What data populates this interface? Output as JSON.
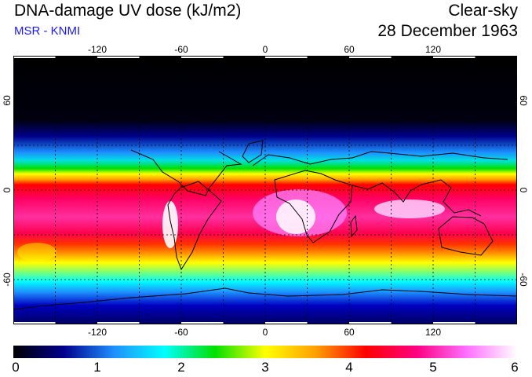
{
  "header": {
    "title": "DNA-damage UV dose (kJ/m2)",
    "source": "MSR - KNMI",
    "condition": "Clear-sky",
    "date": "28 December 1963"
  },
  "axes": {
    "longitude_ticks": [
      "-120",
      "-60",
      "0",
      "60",
      "120"
    ],
    "longitude_values": [
      -120,
      -60,
      0,
      60,
      120
    ],
    "latitude_ticks": [
      "60",
      "0",
      "-60"
    ],
    "latitude_values": [
      60,
      0,
      -60
    ],
    "lon_range": [
      -180,
      180
    ],
    "lat_range": [
      -90,
      90
    ]
  },
  "colorbar": {
    "labels": [
      "0",
      "1",
      "2",
      "3",
      "4",
      "5",
      "6"
    ],
    "min": 0,
    "max": 6
  },
  "colors": {
    "colormap": [
      "#000000",
      "#00008b",
      "#1e90ff",
      "#00ffff",
      "#00e000",
      "#ffff00",
      "#ffa000",
      "#ff0000",
      "#ff0080",
      "#ff70ff",
      "#ffffff"
    ],
    "subtitle": "#1a1aee"
  }
}
